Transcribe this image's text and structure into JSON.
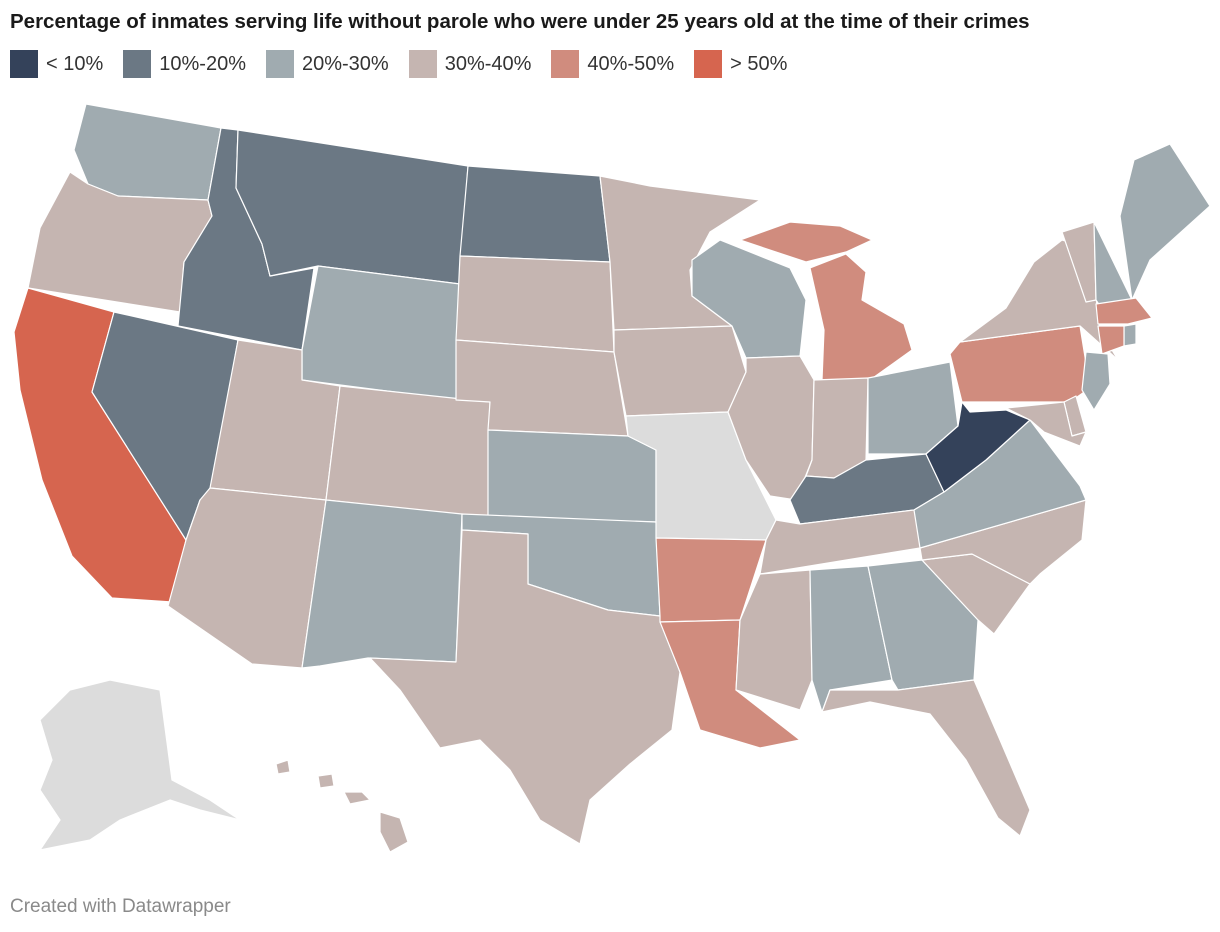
{
  "title": "Percentage of inmates serving life without parole who were under 25 years old at the time of their crimes",
  "legend": [
    {
      "label": "< 10%",
      "color": "#34425a"
    },
    {
      "label": "10%-20%",
      "color": "#6b7884"
    },
    {
      "label": "20%-30%",
      "color": "#a0abb0"
    },
    {
      "label": "30%-40%",
      "color": "#c5b5b1"
    },
    {
      "label": "40%-50%",
      "color": "#d08c7e"
    },
    {
      "label": "> 50%",
      "color": "#d6654f"
    }
  ],
  "no_data_color": "#dcdcdc",
  "states": {
    "WA": 2,
    "OR": 3,
    "CA": 5,
    "NV": 1,
    "ID": 1,
    "MT": 1,
    "WY": 2,
    "UT": 3,
    "AZ": 3,
    "CO": 3,
    "NM": 2,
    "ND": 1,
    "SD": 3,
    "NE": 3,
    "KS": 2,
    "OK": 2,
    "TX": 3,
    "MN": 3,
    "IA": 3,
    "MO": null,
    "AR": 4,
    "LA": 4,
    "WI": 2,
    "IL": 3,
    "MI": 4,
    "IN": 3,
    "OH": 2,
    "KY": 1,
    "TN": 3,
    "MS": 3,
    "AL": 2,
    "GA": 2,
    "FL": 3,
    "SC": 3,
    "NC": 3,
    "VA": 2,
    "WV": 0,
    "PA": 4,
    "NY": 3,
    "VT": 3,
    "NH": 2,
    "ME": 2,
    "MA": 4,
    "CT": 4,
    "RI": 2,
    "NJ": 2,
    "DE": 3,
    "MD": 3,
    "AK": null,
    "HI": 3
  },
  "footer": "Created with Datawrapper"
}
